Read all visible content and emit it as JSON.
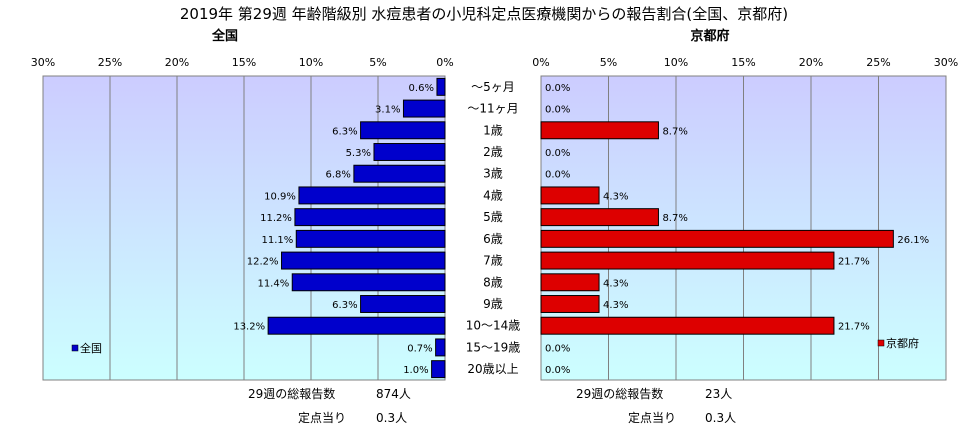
{
  "title": "2019年 第29週 年齢階級別 水痘患者の小児科定点医療機関からの報告割合(全国、京都府)",
  "left_label": "全国",
  "right_label": "京都府",
  "colors": {
    "national": "#0000cc",
    "kyoto": "#dd0000",
    "bg_top": "#ccccff",
    "bg_bottom": "#ccffff"
  },
  "chart_data": {
    "type": "bar",
    "orientation": "horizontal-butterfly",
    "title": "2019年 第29週 年齢階級別 水痘患者の小児科定点医療機関からの報告割合(全国、京都府)",
    "categories": [
      "〜5ヶ月",
      "〜11ヶ月",
      "1歳",
      "2歳",
      "3歳",
      "4歳",
      "5歳",
      "6歳",
      "7歳",
      "8歳",
      "9歳",
      "10〜14歳",
      "15〜19歳",
      "20歳以上"
    ],
    "xlim": [
      0,
      30
    ],
    "ticks": [
      0,
      5,
      10,
      15,
      20,
      25,
      30
    ],
    "tick_labels": [
      "0%",
      "5%",
      "10%",
      "15%",
      "20%",
      "25%",
      "30%"
    ],
    "series": [
      {
        "name": "全国",
        "values": [
          0.6,
          3.1,
          6.3,
          5.3,
          6.8,
          10.9,
          11.2,
          11.1,
          12.2,
          11.4,
          6.3,
          13.2,
          0.7,
          1.0
        ]
      },
      {
        "name": "京都府",
        "values": [
          0.0,
          0.0,
          8.7,
          0.0,
          0.0,
          4.3,
          8.7,
          26.1,
          21.7,
          4.3,
          4.3,
          21.7,
          0.0,
          0.0
        ]
      }
    ],
    "legend": [
      "全国",
      "京都府"
    ],
    "grid": true
  },
  "footer": {
    "national_total_label": "29週の総報告数",
    "national_total_value": "874人",
    "national_per_label": "定点当り",
    "national_per_value": "0.3人",
    "kyoto_total_label": "29週の総報告数",
    "kyoto_total_value": "23人",
    "kyoto_per_label": "定点当り",
    "kyoto_per_value": "0.3人"
  }
}
